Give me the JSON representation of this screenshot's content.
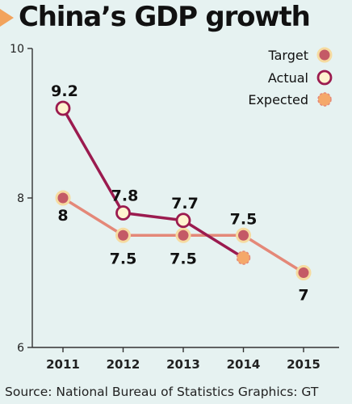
{
  "title": "China’s GDP growth",
  "source": "Source: National Bureau of Statistics  Graphics: GT",
  "colors": {
    "background": "#e6f2f1",
    "title_accent": "#f2a35c",
    "target_line": "#e48878",
    "target_marker_fill": "#c45a66",
    "target_marker_ring": "#f6dba0",
    "actual_line": "#9b1b4f",
    "actual_marker_fill": "#fff3cf",
    "expected_marker_fill": "#f5a86a",
    "axis": "#333333"
  },
  "chart_data": {
    "type": "line",
    "title": "China’s GDP growth",
    "xlabel": "",
    "ylabel": "",
    "categories": [
      "2011",
      "2012",
      "2013",
      "2014",
      "2015"
    ],
    "ylim": [
      6,
      10
    ],
    "yticks": [
      6,
      8,
      10
    ],
    "grid": false,
    "legend_position": "top-right",
    "series": [
      {
        "name": "Target",
        "points": [
          {
            "x": "2011",
            "y": 8,
            "label": "8"
          },
          {
            "x": "2012",
            "y": 7.5,
            "label": "7.5"
          },
          {
            "x": "2013",
            "y": 7.5,
            "label": "7.5"
          },
          {
            "x": "2014",
            "y": 7.5,
            "label": "7.5"
          },
          {
            "x": "2015",
            "y": 7,
            "label": "7"
          }
        ]
      },
      {
        "name": "Actual",
        "points": [
          {
            "x": "2011",
            "y": 9.2,
            "label": "9.2"
          },
          {
            "x": "2012",
            "y": 7.8,
            "label": "7.8"
          },
          {
            "x": "2013",
            "y": 7.7,
            "label": "7.7"
          }
        ]
      },
      {
        "name": "Expected",
        "points": [
          {
            "x": "2014",
            "y": 7.2
          }
        ]
      }
    ]
  }
}
